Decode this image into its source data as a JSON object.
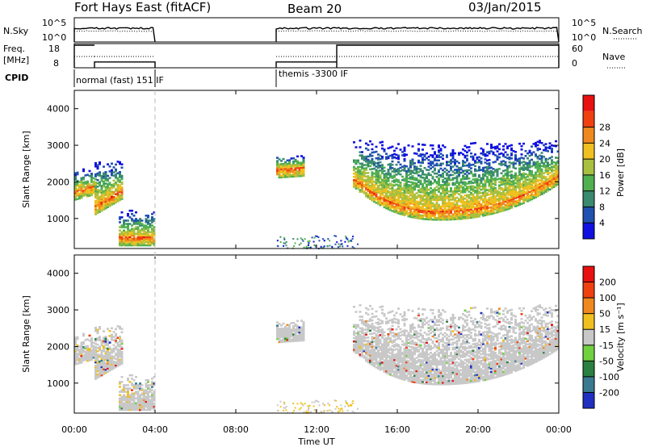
{
  "header": {
    "station": "Fort Hays East (fitACF)",
    "beam": "Beam 20",
    "date": "03/Jan/2015"
  },
  "noise_panel": {
    "left_label": "N.Sky",
    "right_label": "N.Search",
    "left_ticks": [
      "10^5",
      "10^0"
    ],
    "right_ticks": [
      "10^5",
      "10^0"
    ]
  },
  "freq_panel": {
    "left_label_top": "Freq.",
    "left_label_bottom": "[MHz]",
    "right_label": "Nave",
    "left_ticks": [
      "18",
      "8"
    ],
    "right_ticks": [
      "60",
      "0"
    ]
  },
  "cpid": {
    "label": "CPID",
    "modes": [
      {
        "name": "normal (fast) 151 IF",
        "start_hour": 0,
        "end_hour": 4
      },
      {
        "name": "themis -3300 IF",
        "start_hour": 10,
        "end_hour": 24
      }
    ]
  },
  "axes": {
    "xlabel": "Time UT",
    "x_ticks": [
      "00:00",
      "04:00",
      "08:00",
      "12:00",
      "16:00",
      "20:00",
      "00:00"
    ],
    "ylabel": "Slant Range [km]",
    "y_ticks": [
      "1000",
      "2000",
      "3000",
      "4000"
    ]
  },
  "power_colorbar": {
    "label": "Power [dB]",
    "ticks": [
      "4",
      "8",
      "12",
      "16",
      "20",
      "24",
      "28"
    ],
    "colors": [
      "#1010e0",
      "#2050b0",
      "#3a8a70",
      "#50b050",
      "#a8c040",
      "#f0c020",
      "#f08820",
      "#f04010",
      "#e81010"
    ]
  },
  "velocity_colorbar": {
    "label": "Velocity [m s⁻¹]",
    "ticks": [
      "200",
      "100",
      "50",
      "15",
      "-15",
      "-50",
      "-100",
      "-200"
    ],
    "colors": [
      "#2030c0",
      "#3a7a90",
      "#2a8040",
      "#70d040",
      "#c8c8c8",
      "#f0c020",
      "#f08820",
      "#f04010",
      "#e81010"
    ]
  },
  "chart_data": {
    "type": "heatmap",
    "x_range_hours": [
      0,
      24
    ],
    "y_range_km": [
      180,
      4500
    ],
    "gap_hours": [
      4,
      10
    ],
    "tick_hours": [
      0,
      4,
      8,
      12,
      16,
      20,
      24
    ],
    "tick_km": [
      1000,
      2000,
      3000,
      4000
    ],
    "power_colorbar_values": [
      4,
      8,
      12,
      16,
      20,
      24,
      28
    ],
    "velocity_colorbar_values": [
      200,
      100,
      50,
      15,
      -15,
      -50,
      -100,
      -200
    ],
    "echo_regions": [
      {
        "start_hour": 0.0,
        "end_hour": 1.0,
        "core_km": 1750,
        "core_km_end": 1900,
        "upper_km": 2350
      },
      {
        "start_hour": 1.0,
        "end_hour": 2.4,
        "core_km": 1350,
        "core_km_end": 1800,
        "upper_km": 2600
      },
      {
        "start_hour": 2.2,
        "end_hour": 4.0,
        "core_km": 500,
        "core_km_end": 500,
        "upper_km": 1200
      },
      {
        "start_hour": 10.0,
        "end_hour": 11.3,
        "core_km": 2350,
        "core_km_end": 2400,
        "upper_km": 2700
      },
      {
        "start_hour": 13.8,
        "end_hour": 24.0,
        "core_km": 2100,
        "core_km_end": 2200,
        "upper_km": 2800,
        "u_shape": true,
        "min_km": 1200,
        "min_hour": 18.0
      }
    ],
    "freq_mhz": [
      {
        "start_hour": 0,
        "end_hour": 1,
        "value": 18
      },
      {
        "start_hour": 1,
        "end_hour": 4,
        "value": 10
      },
      {
        "start_hour": 10,
        "end_hour": 13,
        "value": 10
      },
      {
        "start_hour": 13,
        "end_hour": 24,
        "value": 18
      }
    ]
  }
}
